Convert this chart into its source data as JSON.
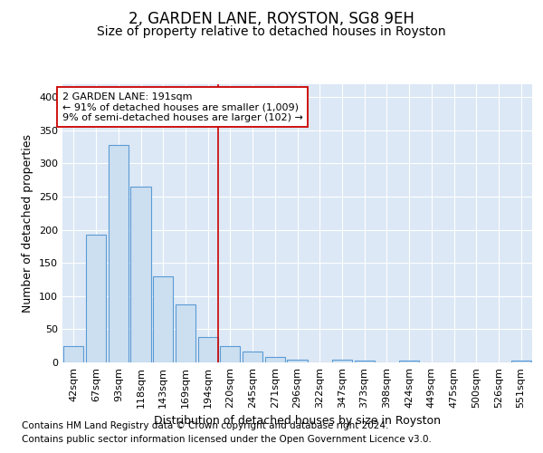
{
  "title": "2, GARDEN LANE, ROYSTON, SG8 9EH",
  "subtitle": "Size of property relative to detached houses in Royston",
  "xlabel": "Distribution of detached houses by size in Royston",
  "ylabel": "Number of detached properties",
  "categories": [
    "42sqm",
    "67sqm",
    "93sqm",
    "118sqm",
    "143sqm",
    "169sqm",
    "194sqm",
    "220sqm",
    "245sqm",
    "271sqm",
    "296sqm",
    "322sqm",
    "347sqm",
    "373sqm",
    "398sqm",
    "424sqm",
    "449sqm",
    "475sqm",
    "500sqm",
    "526sqm",
    "551sqm"
  ],
  "values": [
    24,
    193,
    328,
    265,
    130,
    87,
    38,
    25,
    17,
    8,
    4,
    0,
    4,
    3,
    0,
    3,
    0,
    0,
    0,
    0,
    3
  ],
  "bar_color": "#ccdff0",
  "bar_edge_color": "#5b9bd5",
  "highlight_index": 6,
  "highlight_color": "#cc0000",
  "annotation_line1": "2 GARDEN LANE: 191sqm",
  "annotation_line2": "← 91% of detached houses are smaller (1,009)",
  "annotation_line3": "9% of semi-detached houses are larger (102) →",
  "annotation_box_color": "#ffffff",
  "annotation_box_edge_color": "#cc0000",
  "ylim": [
    0,
    420
  ],
  "yticks": [
    0,
    50,
    100,
    150,
    200,
    250,
    300,
    350,
    400
  ],
  "plot_bg_color": "#dce8f5",
  "footer_line1": "Contains HM Land Registry data © Crown copyright and database right 2024.",
  "footer_line2": "Contains public sector information licensed under the Open Government Licence v3.0.",
  "title_fontsize": 12,
  "subtitle_fontsize": 10,
  "xlabel_fontsize": 9,
  "ylabel_fontsize": 9,
  "tick_fontsize": 8,
  "footer_fontsize": 7.5
}
